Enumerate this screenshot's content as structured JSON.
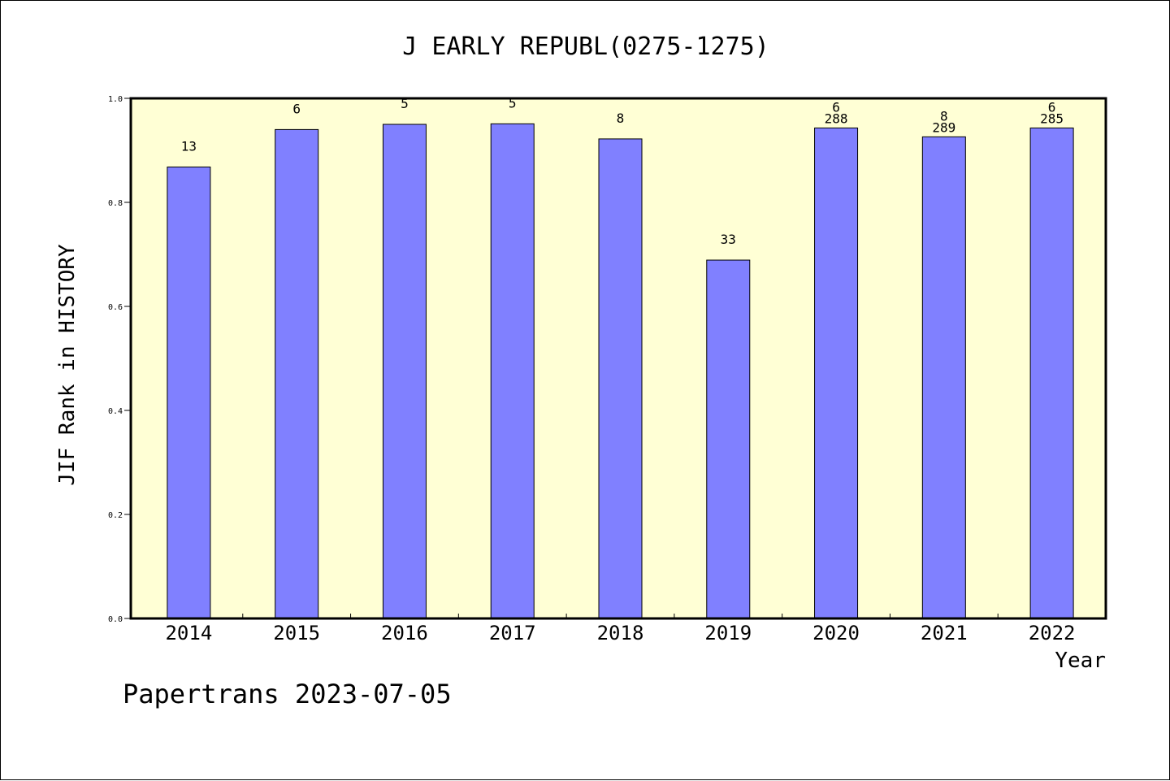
{
  "chart_data": {
    "type": "bar",
    "title": "J EARLY REPUBL(0275-1275)",
    "xlabel": "Year",
    "ylabel": "JIF Rank in HISTORY",
    "categories": [
      "2014",
      "2015",
      "2016",
      "2017",
      "2018",
      "2019",
      "2020",
      "2021",
      "2022"
    ],
    "series": [
      {
        "values": [
          0.868,
          0.94,
          0.95,
          0.951,
          0.922,
          0.689,
          0.943,
          0.926,
          0.943
        ]
      }
    ],
    "rank_labels": [
      "13",
      "6",
      "5",
      "5",
      "8",
      "33",
      "6",
      "8",
      "6"
    ],
    "total_labels": [
      "",
      "",
      "",
      "",
      "",
      "",
      "288",
      "289",
      "285"
    ],
    "ylim": [
      0,
      1
    ],
    "yticks": [
      "0.0",
      "0.2",
      "0.4",
      "0.6",
      "0.8",
      "1.0"
    ],
    "grid": false,
    "bar_color": "#8080ff",
    "plot_background": "#ffffd5",
    "footer": "Papertrans 2023-07-05"
  }
}
